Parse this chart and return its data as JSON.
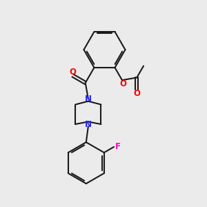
{
  "background_color": "#ebebeb",
  "bond_color": "#1a1a1a",
  "nitrogen_color": "#2222ff",
  "oxygen_color": "#ff0000",
  "fluorine_color": "#ff00cc",
  "line_width": 1.5,
  "figsize": [
    3.0,
    3.0
  ],
  "dpi": 100,
  "xlim": [
    0,
    10
  ],
  "ylim": [
    0,
    10
  ]
}
